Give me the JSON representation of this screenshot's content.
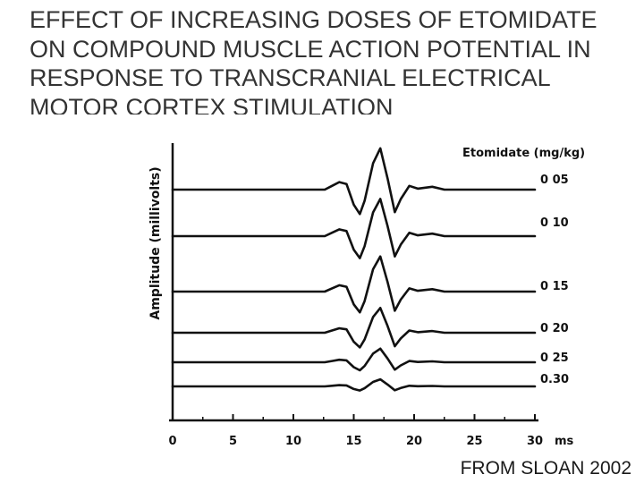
{
  "slide": {
    "title_lines": [
      "EFFECT OF INCREASING DOSES OF ETOMIDATE",
      "ON COMPOUND MUSCLE ACTION POTENTIAL IN",
      "RESPONSE TO TRANSCRANIAL ELECTRICAL",
      "MOTOR CORTEX STIMULATION"
    ],
    "credit": "FROM SLOAN 2002"
  },
  "chart_data": {
    "type": "line",
    "ylabel": "Amplitude (millivolts)",
    "x_unit": "ms",
    "xlim": [
      0,
      30
    ],
    "xticks": [
      0,
      5,
      10,
      15,
      20,
      25,
      30
    ],
    "tick_labels": [
      "0",
      "5",
      "10",
      "15",
      "20",
      "25",
      "30"
    ],
    "legend_title": "Etomidate (mg/kg)",
    "series": [
      {
        "name": "0.05",
        "label": "0 05",
        "gain": 1.0
      },
      {
        "name": "0.10",
        "label": "0 10",
        "gain": 0.9
      },
      {
        "name": "0.15",
        "label": "0 15",
        "gain": 0.85
      },
      {
        "name": "0.20",
        "label": "0 20",
        "gain": 0.6
      },
      {
        "name": "0.25",
        "label": "0 25",
        "gain": 0.33
      },
      {
        "name": "0.30",
        "label": "0.30",
        "gain": 0.17
      }
    ]
  }
}
